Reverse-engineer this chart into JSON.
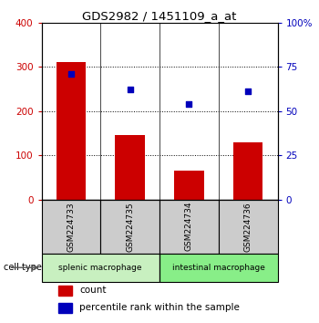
{
  "title": "GDS2982 / 1451109_a_at",
  "samples": [
    "GSM224733",
    "GSM224735",
    "GSM224734",
    "GSM224736"
  ],
  "counts": [
    310,
    145,
    65,
    130
  ],
  "percentiles": [
    285,
    250,
    215,
    245
  ],
  "ylim": [
    0,
    400
  ],
  "left_ticks": [
    0,
    100,
    200,
    300,
    400
  ],
  "left_labels": [
    "0",
    "100",
    "200",
    "300",
    "400"
  ],
  "right_ticks": [
    0,
    100,
    200,
    300,
    400
  ],
  "right_labels": [
    "0",
    "25",
    "50",
    "75",
    "100%"
  ],
  "bar_color": "#cc0000",
  "dot_color": "#0000bb",
  "groups": [
    {
      "label": "splenic macrophage",
      "indices": [
        0,
        1
      ],
      "color": "#c8f0c0"
    },
    {
      "label": "intestinal macrophage",
      "indices": [
        2,
        3
      ],
      "color": "#88ee88"
    }
  ],
  "sample_box_color": "#cccccc",
  "legend_count_label": "count",
  "legend_pct_label": "percentile rank within the sample",
  "cell_type_label": "cell type"
}
